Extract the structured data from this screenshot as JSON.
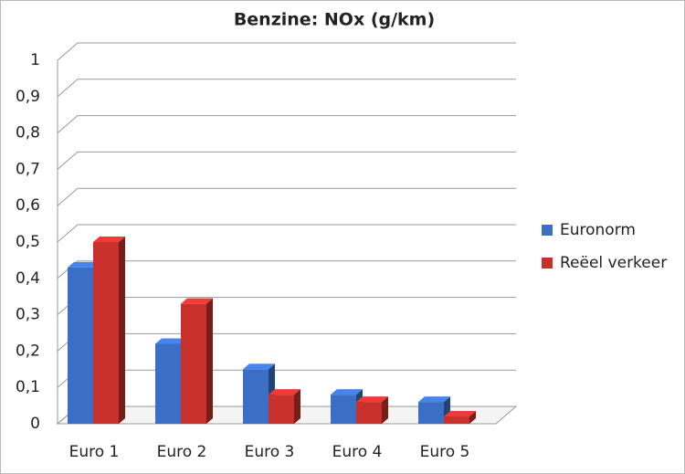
{
  "chart_data": {
    "type": "bar3d",
    "title": "Benzine: NOx (g/km)",
    "categories": [
      "Euro 1",
      "Euro 2",
      "Euro 3",
      "Euro 4",
      "Euro 5"
    ],
    "series": [
      {
        "name": "Euronorm",
        "color": "#3b6fc6",
        "values": [
          0.43,
          0.22,
          0.15,
          0.08,
          0.06
        ]
      },
      {
        "name": "Reëel verkeer",
        "color": "#c9302c",
        "values": [
          0.5,
          0.33,
          0.08,
          0.06,
          0.02
        ]
      }
    ],
    "ylim": [
      0,
      1
    ],
    "yticks": [
      0,
      {
        "value": 0.1,
        "label": "0,1"
      },
      {
        "value": 0.2,
        "label": "0,2"
      },
      {
        "value": 0.3,
        "label": "0,3"
      },
      {
        "value": 0.4,
        "label": "0,4"
      },
      {
        "value": 0.5,
        "label": "0,5"
      },
      {
        "value": 0.6,
        "label": "0,6"
      },
      {
        "value": 0.7,
        "label": "0,7"
      },
      {
        "value": 0.8,
        "label": "0,8"
      },
      {
        "value": 0.9,
        "label": "0,9"
      },
      1
    ],
    "grid": true,
    "legend": "right"
  }
}
